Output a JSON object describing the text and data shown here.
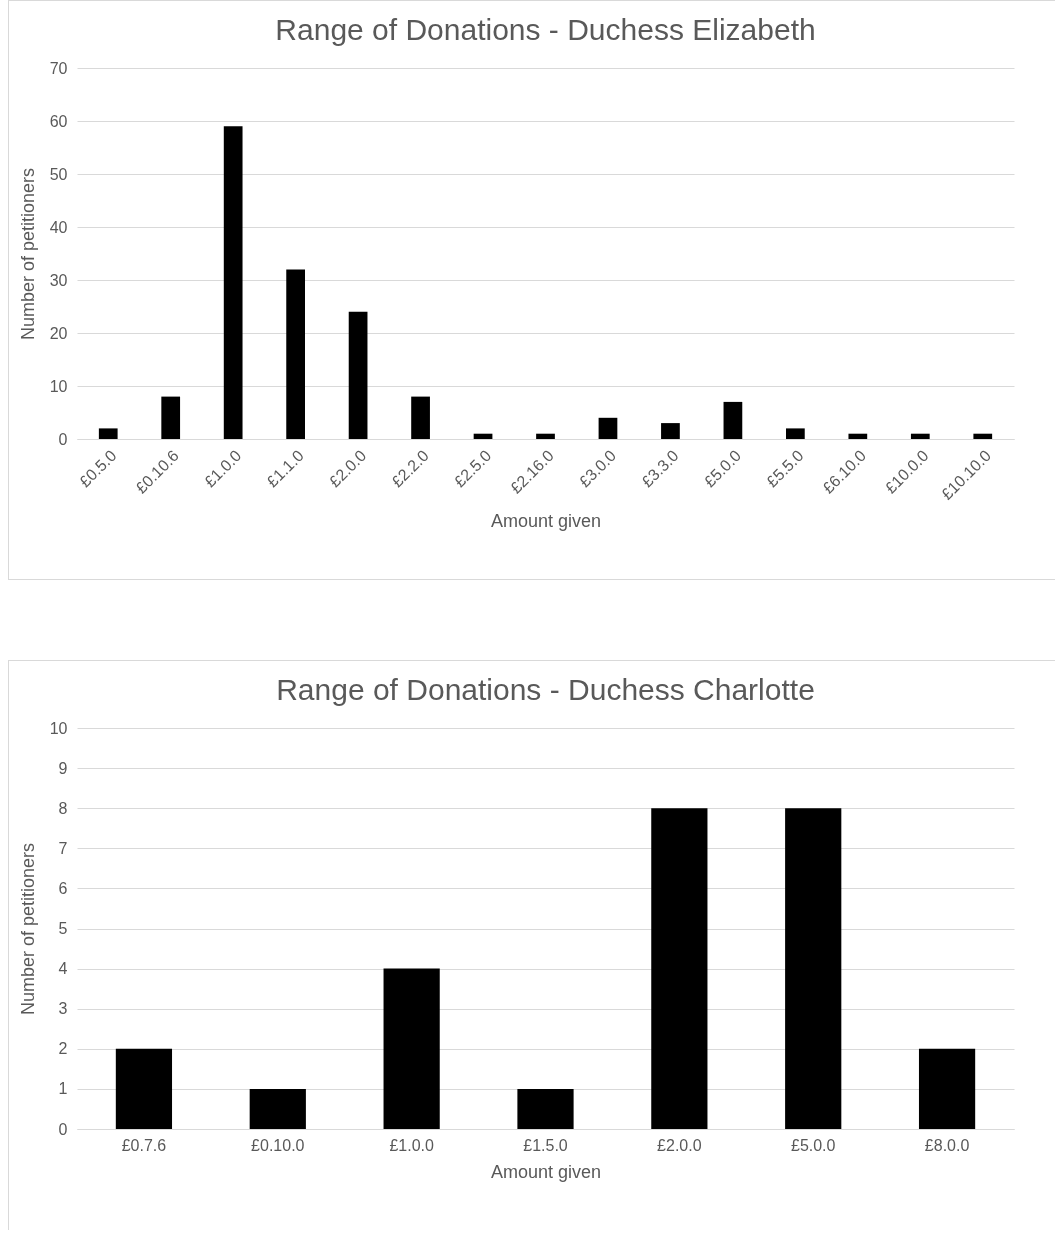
{
  "chart_data": [
    {
      "type": "bar",
      "title": "Range of Donations - Duchess Elizabeth",
      "xlabel": "Amount given",
      "ylabel": "Number of petitioners",
      "categories": [
        "£0.5.0",
        "£0.10.6",
        "£1.0.0",
        "£1.1.0",
        "£2.0.0",
        "£2.2.0",
        "£2.5.0",
        "£2.16.0",
        "£3.0.0",
        "£3.3.0",
        "£5.0.0",
        "£5.5.0",
        "£6.10.0",
        "£10.0.0",
        "£10.10.0"
      ],
      "values": [
        2,
        8,
        59,
        32,
        24,
        8,
        1,
        1,
        4,
        3,
        7,
        2,
        1,
        1,
        1
      ],
      "color": "#000000",
      "ylim": [
        0,
        70
      ],
      "yticks": [
        0,
        10,
        20,
        30,
        40,
        50,
        60,
        70
      ],
      "grid": "y"
    },
    {
      "type": "bar",
      "title": "Range of Donations - Duchess Charlotte",
      "xlabel": "Amount given",
      "ylabel": "Number of petitioners",
      "categories": [
        "£0.7.6",
        "£0.10.0",
        "£1.0.0",
        "£1.5.0",
        "£2.0.0",
        "£5.0.0",
        "£8.0.0"
      ],
      "values": [
        2,
        1,
        4,
        1,
        8,
        8,
        2
      ],
      "color": "#000000",
      "ylim": [
        0,
        10
      ],
      "yticks": [
        0,
        1,
        2,
        3,
        4,
        5,
        6,
        7,
        8,
        9,
        10
      ],
      "grid": "y"
    }
  ]
}
